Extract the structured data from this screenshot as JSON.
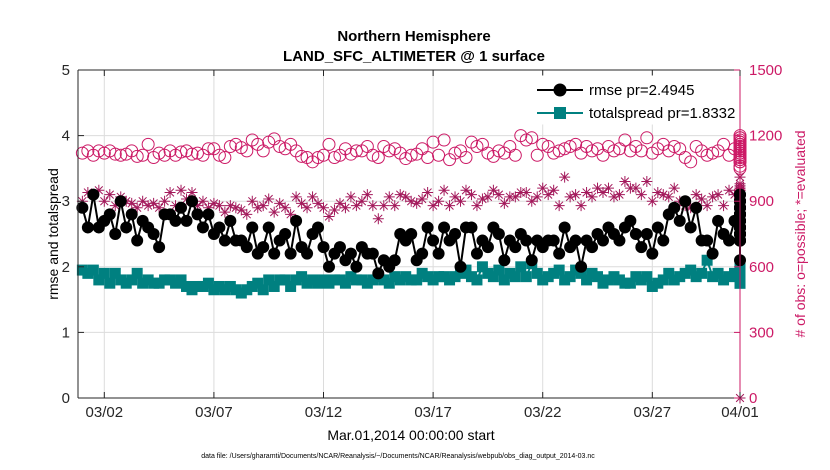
{
  "chart_data": {
    "type": "line",
    "title": "Northern Hemisphere",
    "subtitle": "LAND_SFC_ALTIMETER @ 1 surface",
    "xlabel": "Mar.01,2014 00:00:00 start",
    "ylabel": "rmse and totalspread",
    "y2label": "# of obs: o=possible; *=evaluated",
    "footnote": "data file: /Users/gharamti/Documents/NCAR/Reanalysis/~/Documents/NCAR/Reanalysis/webpub/obs_diag_output_2014-03.nc",
    "xlim": [
      0.8,
      31.0
    ],
    "ylim": [
      0,
      5
    ],
    "y2lim": [
      0,
      1500
    ],
    "xticks": [
      {
        "day": 2,
        "label": "03/02"
      },
      {
        "day": 7,
        "label": "03/07"
      },
      {
        "day": 12,
        "label": "03/12"
      },
      {
        "day": 17,
        "label": "03/17"
      },
      {
        "day": 22,
        "label": "03/22"
      },
      {
        "day": 27,
        "label": "03/27"
      },
      {
        "day": 32,
        "label": "04/01"
      }
    ],
    "yticks": [
      "0",
      "1",
      "2",
      "3",
      "4",
      "5"
    ],
    "y2ticks": [
      "0",
      "300",
      "600",
      "900",
      "1200",
      "1500"
    ],
    "grid": true,
    "legend_position": "top-right",
    "x_start_day": 1.0,
    "x_step_days": 0.25,
    "series": [
      {
        "name": "rmse pr=2.4945",
        "axis": "left",
        "color": "#000000",
        "marker": "circle",
        "values": [
          2.9,
          2.6,
          3.1,
          2.6,
          2.7,
          2.8,
          2.5,
          3.0,
          2.6,
          2.8,
          2.4,
          2.7,
          2.6,
          2.5,
          2.3,
          2.8,
          2.8,
          2.7,
          2.9,
          2.7,
          3.0,
          2.8,
          2.6,
          2.8,
          2.5,
          2.6,
          2.4,
          2.7,
          2.4,
          2.4,
          2.3,
          2.6,
          2.2,
          2.3,
          2.6,
          2.2,
          2.4,
          2.5,
          2.2,
          2.7,
          2.3,
          2.2,
          2.5,
          2.6,
          2.3,
          2.0,
          2.2,
          2.3,
          2.1,
          2.2,
          2.0,
          2.3,
          2.2,
          2.2,
          1.9,
          2.1,
          2.0,
          2.1,
          2.5,
          2.4,
          2.5,
          2.1,
          2.2,
          2.6,
          2.4,
          2.2,
          2.6,
          2.4,
          2.5,
          2.0,
          2.6,
          2.6,
          2.2,
          2.4,
          2.3,
          2.6,
          2.5,
          2.1,
          2.4,
          2.3,
          2.5,
          2.4,
          2.1,
          2.4,
          2.3,
          2.4,
          2.4,
          2.2,
          2.6,
          2.3,
          2.4,
          2.0,
          2.4,
          2.3,
          2.5,
          2.4,
          2.6,
          2.5,
          2.4,
          2.6,
          2.7,
          2.5,
          2.3,
          2.5,
          2.2,
          2.6,
          2.4,
          2.8,
          2.9,
          2.7,
          3.0,
          2.6,
          2.9,
          2.4,
          2.4,
          2.2,
          2.7,
          2.5,
          2.4,
          2.7,
          2.6,
          2.4,
          2.8,
          2.8,
          3.0,
          2.6,
          2.8,
          2.5,
          2.7,
          2.8,
          2.9,
          2.5,
          2.4,
          2.6,
          2.6,
          2.8,
          2.7,
          2.6,
          2.9,
          2.9,
          2.5,
          2.7,
          2.5,
          2.5,
          2.6,
          2.8,
          2.6,
          2.4,
          2.6,
          2.5,
          2.4,
          2.5,
          2.6,
          2.1,
          2.5,
          2.7,
          2.4,
          2.5,
          2.7,
          2.7,
          3.0,
          2.9,
          2.7,
          3.1,
          3.1,
          2.8,
          3.0,
          2.9,
          3.0,
          2.8,
          2.9,
          2.6,
          2.5,
          2.4
        ]
      },
      {
        "name": "totalspread pr=1.8332",
        "axis": "left",
        "color": "#008080",
        "marker": "square",
        "values": [
          1.95,
          1.9,
          1.95,
          1.8,
          1.9,
          1.75,
          1.9,
          1.8,
          1.75,
          1.8,
          1.9,
          1.75,
          1.8,
          1.75,
          1.75,
          1.8,
          1.8,
          1.75,
          1.8,
          1.7,
          1.65,
          1.7,
          1.7,
          1.75,
          1.65,
          1.7,
          1.65,
          1.7,
          1.65,
          1.6,
          1.65,
          1.7,
          1.75,
          1.65,
          1.8,
          1.7,
          1.8,
          1.8,
          1.7,
          1.8,
          1.85,
          1.75,
          1.8,
          1.75,
          1.8,
          1.75,
          1.8,
          1.8,
          1.75,
          1.85,
          1.8,
          1.8,
          1.75,
          1.8,
          1.85,
          1.8,
          1.75,
          1.85,
          1.8,
          1.85,
          1.8,
          1.8,
          1.9,
          1.85,
          1.8,
          1.85,
          1.85,
          1.8,
          1.85,
          1.9,
          1.95,
          1.85,
          1.8,
          2.0,
          1.9,
          1.85,
          1.95,
          1.8,
          1.9,
          1.85,
          2.0,
          1.85,
          2.05,
          1.9,
          1.8,
          1.85,
          1.9,
          1.95,
          1.8,
          1.85,
          1.95,
          1.9,
          1.8,
          1.9,
          1.85,
          1.75,
          1.8,
          1.85,
          1.8,
          1.75,
          1.75,
          1.85,
          1.8,
          1.85,
          1.7,
          1.75,
          1.8,
          1.9,
          1.8,
          1.85,
          1.9,
          1.95,
          1.85,
          1.9,
          2.1,
          1.85,
          1.9,
          1.8,
          1.85,
          1.9,
          1.85,
          1.95,
          1.8,
          1.85,
          1.9,
          1.8,
          1.85,
          1.75,
          1.85,
          1.8,
          1.85,
          1.9,
          1.95,
          1.85,
          1.9,
          1.85,
          1.8,
          1.85,
          1.95,
          1.85,
          1.9,
          1.8,
          1.95,
          1.85,
          1.8,
          1.9,
          1.85,
          1.85,
          1.9,
          1.95,
          1.9,
          2.0,
          1.85,
          1.95,
          1.9,
          1.85,
          1.95,
          1.9,
          2.0,
          1.95,
          1.85,
          1.95,
          1.9,
          1.85,
          1.95,
          2.0,
          1.9,
          1.95,
          1.85,
          1.9,
          1.95,
          1.9,
          2.0,
          1.75
        ]
      },
      {
        "name": "possible",
        "axis": "right",
        "color": "#CC1A66",
        "marker": "open-circle",
        "values": [
          1120,
          1130,
          1110,
          1130,
          1120,
          1130,
          1115,
          1110,
          1115,
          1130,
          1105,
          1110,
          1160,
          1100,
          1120,
          1110,
          1130,
          1110,
          1125,
          1130,
          1115,
          1120,
          1110,
          1140,
          1140,
          1110,
          1100,
          1150,
          1160,
          1145,
          1130,
          1180,
          1160,
          1130,
          1170,
          1185,
          1150,
          1140,
          1160,
          1130,
          1105,
          1100,
          1080,
          1100,
          1110,
          1160,
          1100,
          1110,
          1140,
          1115,
          1130,
          1130,
          1150,
          1110,
          1100,
          1150,
          1130,
          1140,
          1120,
          1095,
          1110,
          1115,
          1140,
          1100,
          1170,
          1110,
          1180,
          1090,
          1120,
          1130,
          1100,
          1170,
          1150,
          1160,
          1120,
          1105,
          1130,
          1120,
          1150,
          1110,
          1200,
          1180,
          1190,
          1110,
          1160,
          1150,
          1120,
          1130,
          1140,
          1150,
          1160,
          1120,
          1150,
          1130,
          1140,
          1110,
          1150,
          1130,
          1140,
          1180,
          1130,
          1150,
          1130,
          1190,
          1120,
          1140,
          1160,
          1130,
          1150,
          1140,
          1100,
          1080,
          1150,
          1130,
          1110,
          1120,
          1130,
          1160,
          1110,
          1140,
          1190,
          1140,
          1160,
          1150,
          1110,
          1140,
          1150,
          1170,
          1140,
          1110,
          1120,
          1150,
          1140,
          1160,
          1170,
          1120,
          1060,
          1050,
          1080,
          1090,
          1130,
          1140,
          1150,
          1170,
          1100,
          1160,
          1140,
          1160,
          1100,
          1180,
          1150,
          1160,
          1120,
          1140,
          1160,
          1150,
          1130,
          1130,
          1160,
          1140,
          1130,
          1150,
          1200,
          1160,
          1110,
          1120,
          1140,
          1130,
          1150,
          1160,
          1090,
          1130,
          1100,
          1080,
          1190
        ]
      },
      {
        "name": "evaluated",
        "axis": "right",
        "color": "#A3195B",
        "marker": "asterisk",
        "values": [
          900,
          940,
          930,
          950,
          900,
          930,
          880,
          920,
          900,
          890,
          870,
          900,
          880,
          890,
          870,
          900,
          940,
          880,
          950,
          910,
          940,
          880,
          900,
          870,
          890,
          880,
          850,
          880,
          870,
          860,
          840,
          900,
          870,
          880,
          910,
          850,
          890,
          870,
          840,
          920,
          890,
          870,
          920,
          890,
          870,
          830,
          860,
          890,
          870,
          920,
          880,
          900,
          930,
          880,
          820,
          880,
          920,
          880,
          930,
          920,
          900,
          890,
          910,
          940,
          880,
          900,
          950,
          880,
          920,
          900,
          950,
          930,
          880,
          910,
          920,
          950,
          930,
          890,
          920,
          920,
          940,
          940,
          900,
          920,
          960,
          930,
          950,
          880,
          1010,
          920,
          930,
          880,
          940,
          920,
          960,
          940,
          960,
          920,
          930,
          990,
          960,
          960,
          930,
          990,
          900,
          940,
          930,
          920,
          960,
          900,
          880,
          870,
          930,
          910,
          880,
          920,
          930,
          880,
          950,
          930,
          980,
          930,
          940,
          930,
          900,
          950,
          940,
          960,
          920,
          890,
          880,
          940,
          930,
          930,
          970,
          880,
          820,
          800,
          850,
          880,
          890,
          920,
          940,
          930,
          850,
          920,
          940,
          950,
          870,
          960,
          940,
          940,
          890,
          910,
          940,
          930,
          950,
          940,
          900,
          900,
          1010,
          920,
          880,
          900,
          970,
          950,
          910,
          930,
          950,
          880,
          960,
          940,
          860,
          0
        ]
      }
    ]
  }
}
